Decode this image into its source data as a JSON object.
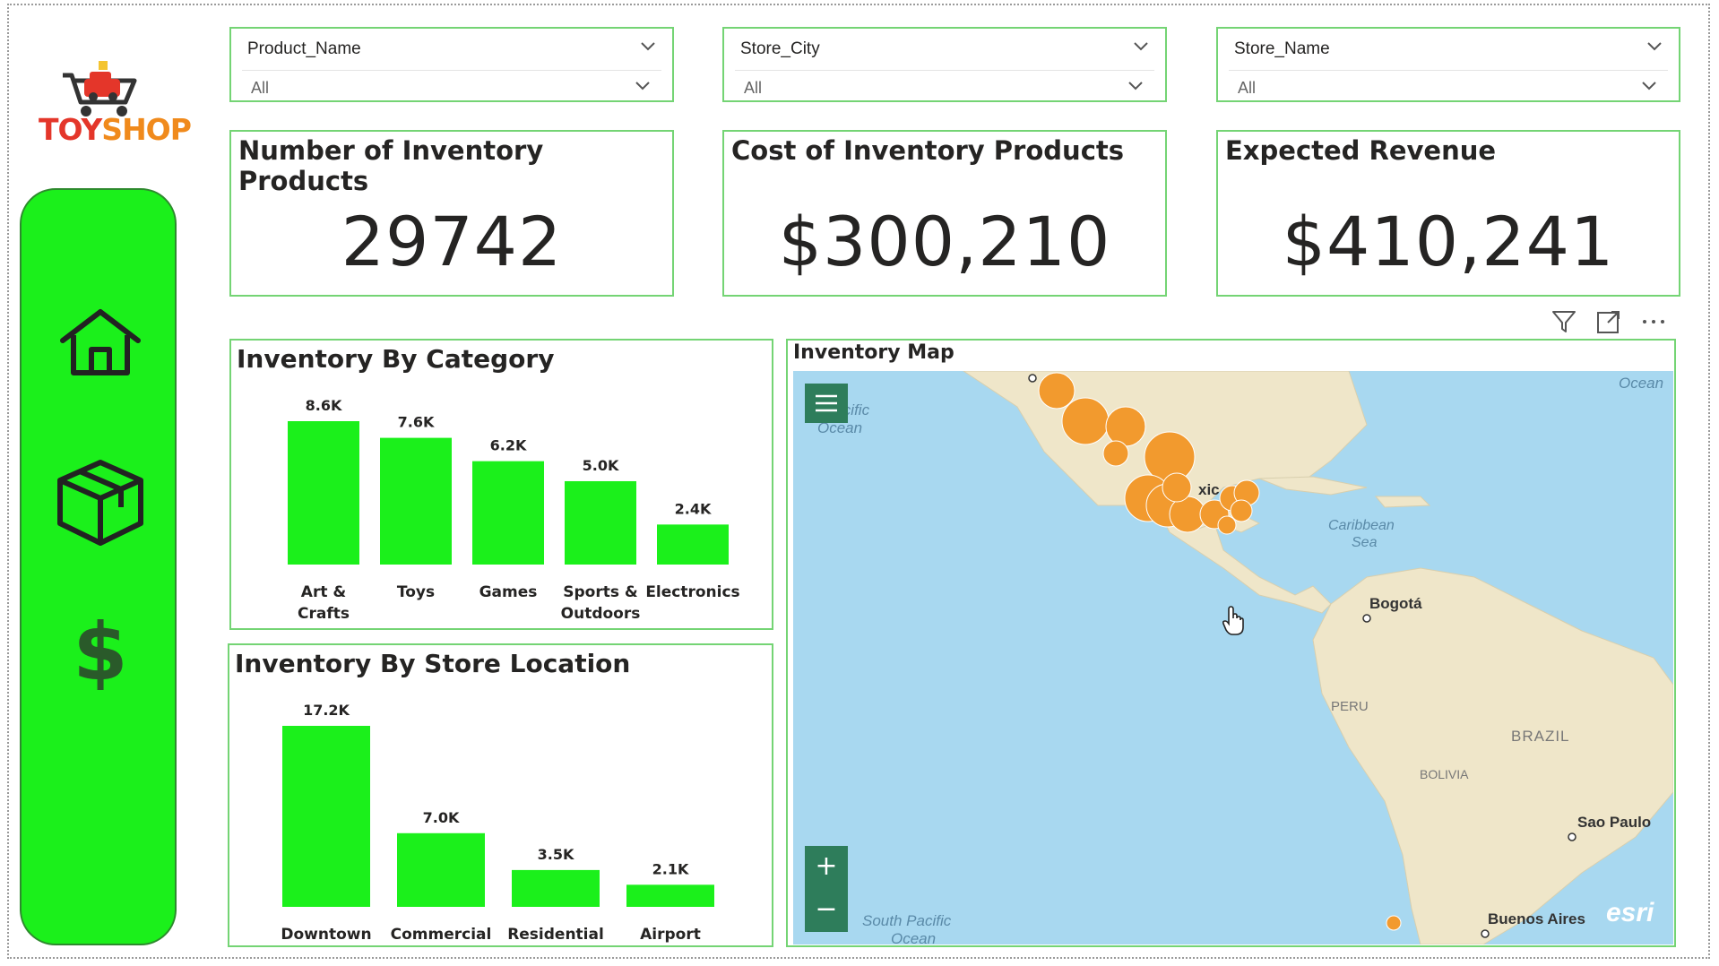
{
  "logo": {
    "text_part1": "TOY",
    "text_part2": "SHOP"
  },
  "sidebar": {
    "items": [
      {
        "icon": "home-icon"
      },
      {
        "icon": "box-icon"
      },
      {
        "icon": "dollar-icon"
      }
    ]
  },
  "slicers": [
    {
      "title": "Product_Name",
      "value": "All"
    },
    {
      "title": "Store_City",
      "value": "All"
    },
    {
      "title": "Store_Name",
      "value": "All"
    }
  ],
  "kpis": [
    {
      "title": "Number of Inventory Products",
      "value": "29742"
    },
    {
      "title": "Cost of Inventory Products",
      "value": "$300,210"
    },
    {
      "title": "Expected Revenue",
      "value": "$410,241"
    }
  ],
  "chart_data": [
    {
      "type": "bar",
      "title": "Inventory By Category",
      "categories": [
        [
          "Art &",
          "Crafts"
        ],
        [
          "Toys"
        ],
        [
          "Games"
        ],
        [
          "Sports &",
          "Outdoors"
        ],
        [
          "Electronics"
        ]
      ],
      "values": [
        8600,
        7600,
        6200,
        5000,
        2400
      ],
      "data_labels": [
        "8.6K",
        "7.6K",
        "6.2K",
        "5.0K",
        "2.4K"
      ],
      "color": "#1bf01b"
    },
    {
      "type": "bar",
      "title": "Inventory By Store Location",
      "categories": [
        [
          "Downtown"
        ],
        [
          "Commercial"
        ],
        [
          "Residential"
        ],
        [
          "Airport"
        ]
      ],
      "values": [
        17200,
        7000,
        3500,
        2100
      ],
      "data_labels": [
        "17.2K",
        "7.0K",
        "3.5K",
        "2.1K"
      ],
      "color": "#1bf01b"
    }
  ],
  "map": {
    "title": "Inventory Map",
    "labels": {
      "pacific": "Pacific",
      "ocean1": "Ocean",
      "ocean2": "Ocean",
      "caribbean1": "Caribbean",
      "caribbean2": "Sea",
      "mexico": "xic",
      "bogota": "Bogotá",
      "peru": "PERU",
      "brazil": "BRAZIL",
      "bolivia": "BOLIVIA",
      "saopaulo": "Sao Paulo",
      "buenosaires": "Buenos Aires",
      "southpacific": "South Pacific",
      "ocean3": "Ocean",
      "attribution": "esri"
    },
    "zoom_in": "+",
    "zoom_out": "−",
    "toolbar": [
      "filter-icon",
      "focus-mode-icon",
      "more-options-icon"
    ]
  },
  "colors": {
    "accent_green": "#1bf01b",
    "panel_border": "#74d474",
    "bubble": "#f29a2e",
    "map_ocean": "#a8d8f0",
    "map_land": "#efe6c9"
  }
}
